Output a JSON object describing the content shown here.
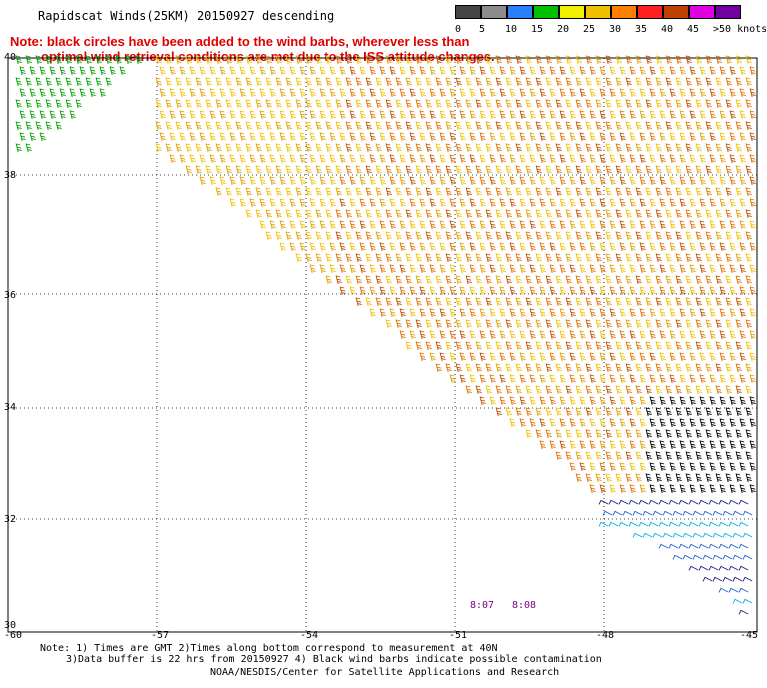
{
  "title": "Rapidscat Winds(25KM) 20150927 descending",
  "note": {
    "line1": "Note: black circles have been added to the wind barbs, wherever less than",
    "line2": "optimal wind retrieval conditions are met due to the ISS attitude changes."
  },
  "legend": {
    "labels": [
      "0",
      "5",
      "10",
      "15",
      "20",
      "25",
      "30",
      "35",
      "40",
      "45",
      ">50 knots"
    ],
    "colors": [
      "#444444",
      "#8c8c8c",
      "#2a7fff",
      "#00c000",
      "#f0f000",
      "#f0c000",
      "#ff8000",
      "#ff2020",
      "#c04000",
      "#e000e0",
      "#7000a0"
    ]
  },
  "axes": {
    "lat_labels": [
      "40",
      "38",
      "36",
      "34",
      "32",
      "30"
    ],
    "lon_labels": [
      "-60",
      "-57",
      "-54",
      "-51",
      "-48",
      "-45"
    ]
  },
  "pass_times": [
    "8:07",
    "8:08"
  ],
  "footer": {
    "line1": "Note: 1) Times are GMT 2)Times along bottom correspond to measurement at 40N",
    "line2": "3)Data buffer is 22 hrs from 20150927 4) Black wind barbs indicate possible contamination",
    "line3": "NOAA/NESDIS/Center for Satellite Applications and Research"
  }
}
